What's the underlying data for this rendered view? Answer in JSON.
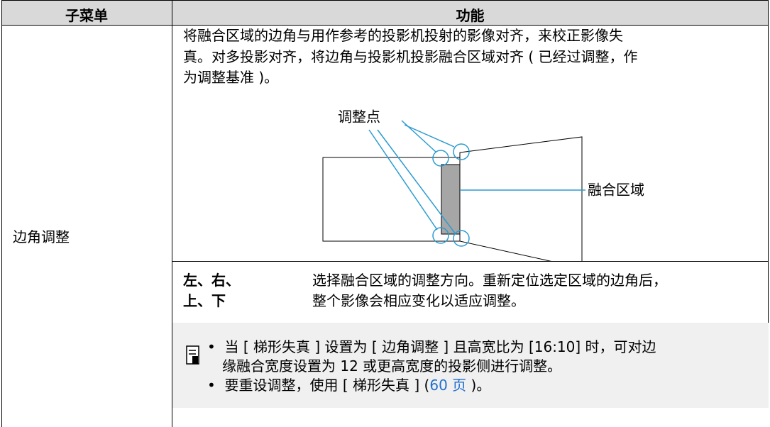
{
  "table": {
    "headers": [
      "子菜单",
      "功能"
    ],
    "rows": [
      {
        "submenu": "边角调整",
        "description_lines": [
          "将融合区域的边角与用作参考的投影机投射的影像对齐，来校正影像失",
          "真。对多投影对齐，将边角与投影机投影融合区域对齐 ( 已经过调整，作",
          "为调整基准 )。"
        ],
        "diagram": {
          "points_label": "调整点",
          "area_label": "融合区域"
        },
        "option": {
          "keys_lines": [
            "左、右、",
            "上、下"
          ],
          "description_lines": [
            "选择融合区域的调整方向。重新定位选定区域的边角后，",
            "整个影像会相应变化以适应调整。"
          ]
        },
        "note": {
          "bullets": [
            {
              "lines": [
                "当 [ 梯形失真 ] 设置为 [ 边角调整 ] 且高宽比为 [16:10] 时，可对边",
                "缘融合宽度设置为 12 或更高宽度的投影侧进行调整。"
              ]
            },
            {
              "before": "要重设调整，使用 [ 梯形失真 ] (",
              "link": "60 页",
              "after": " )。"
            }
          ]
        }
      }
    ]
  }
}
